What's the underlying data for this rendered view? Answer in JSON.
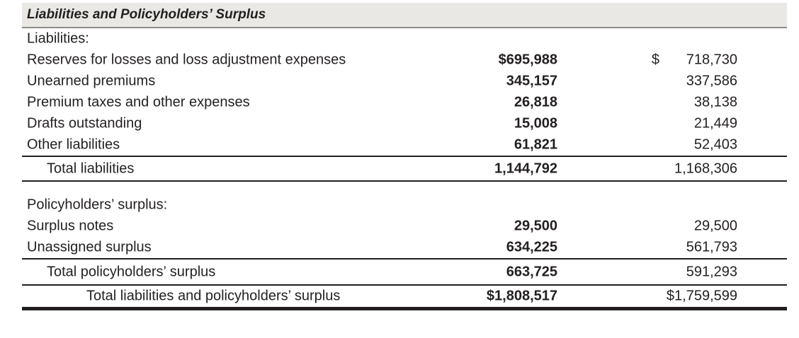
{
  "section_title": "Liabilities and Policyholders’ Surplus",
  "liabilities": {
    "heading": "Liabilities:",
    "rows": [
      {
        "label": "Reserves for losses and loss adjustment expenses",
        "current": "$695,988",
        "prior_symbol": "$",
        "prior": "718,730"
      },
      {
        "label": "Unearned premiums",
        "current": "345,157",
        "prior": "337,586"
      },
      {
        "label": "Premium taxes and other expenses",
        "current": "26,818",
        "prior": "38,138"
      },
      {
        "label": "Drafts outstanding",
        "current": "15,008",
        "prior": "21,449"
      },
      {
        "label": "Other liabilities",
        "current": "61,821",
        "prior": "52,403"
      }
    ],
    "total": {
      "label": "Total liabilities",
      "current": "1,144,792",
      "prior": "1,168,306"
    }
  },
  "surplus": {
    "heading": "Policyholders’ surplus:",
    "rows": [
      {
        "label": "Surplus notes",
        "current": "29,500",
        "prior": "29,500"
      },
      {
        "label": "Unassigned surplus",
        "current": "634,225",
        "prior": "561,793"
      }
    ],
    "total": {
      "label": "Total policyholders’ surplus",
      "current": "663,725",
      "prior": "591,293"
    }
  },
  "grand_total": {
    "label": "Total liabilities and policyholders’ surplus",
    "current": "$1,808,517",
    "prior": "$1,759,599"
  }
}
